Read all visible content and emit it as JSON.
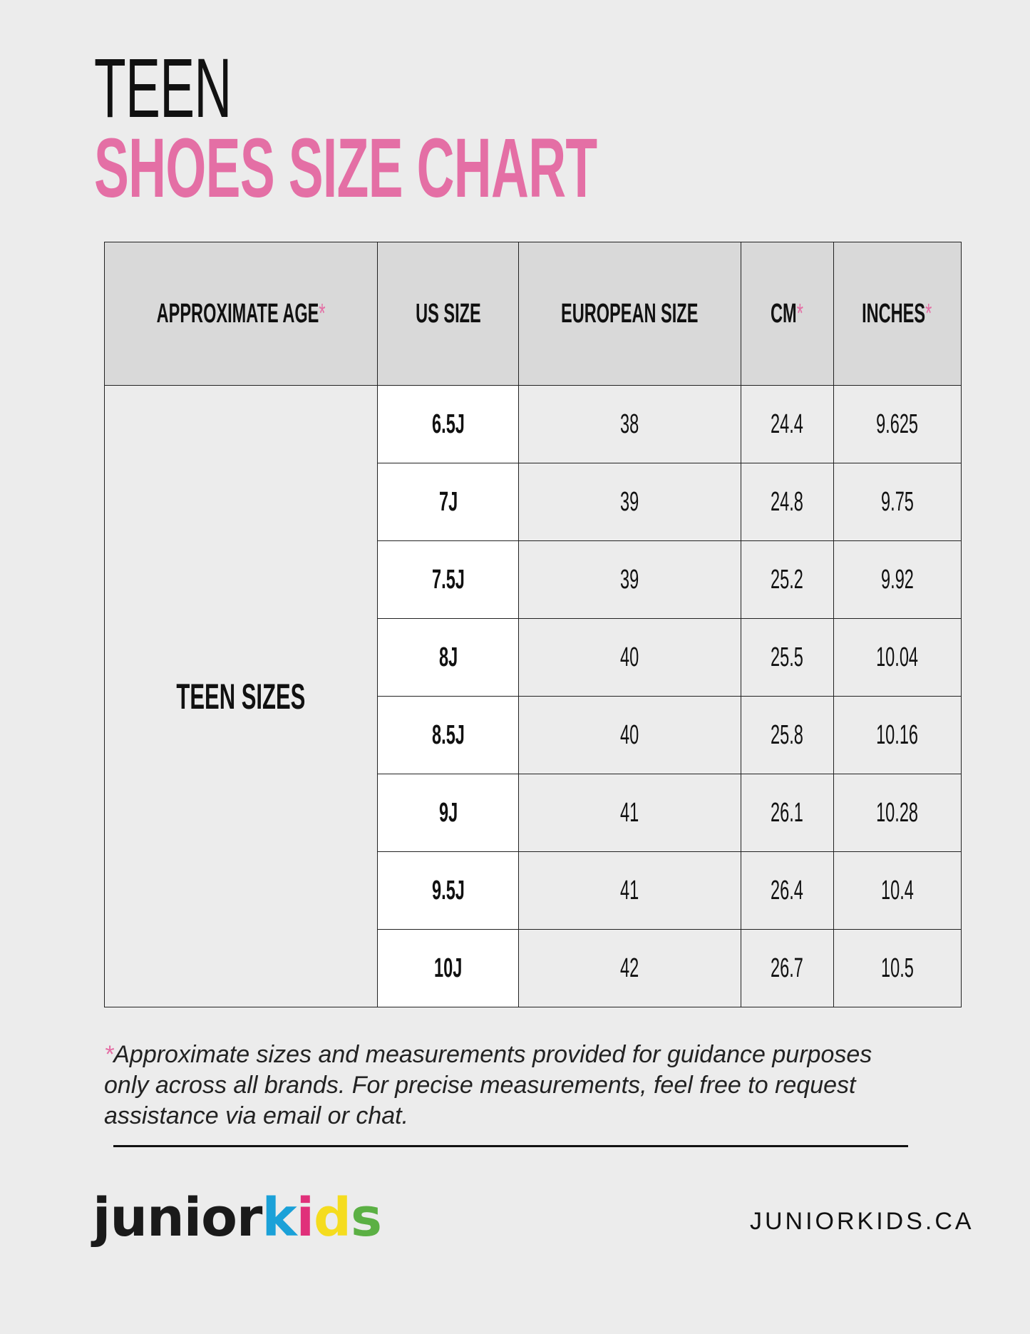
{
  "title": {
    "line1": "TEEN",
    "line2": "SHOES SIZE CHART"
  },
  "colors": {
    "accent": "#e46fa5",
    "header_bg": "#d9d9d9",
    "background": "#ececec"
  },
  "table": {
    "headers": [
      "APPROXIMATE AGE",
      "US SIZE",
      "EUROPEAN SIZE",
      "CM",
      "INCHES"
    ],
    "header_asterisk": [
      true,
      false,
      false,
      true,
      true
    ],
    "age_label": "TEEN SIZES",
    "rows": [
      {
        "us": "6.5J",
        "eu": "38",
        "cm": "24.4",
        "in": "9.625"
      },
      {
        "us": "7J",
        "eu": "39",
        "cm": "24.8",
        "in": "9.75"
      },
      {
        "us": "7.5J",
        "eu": "39",
        "cm": "25.2",
        "in": "9.92"
      },
      {
        "us": "8J",
        "eu": "40",
        "cm": "25.5",
        "in": "10.04"
      },
      {
        "us": "8.5J",
        "eu": "40",
        "cm": "25.8",
        "in": "10.16"
      },
      {
        "us": "9J",
        "eu": "41",
        "cm": "26.1",
        "in": "10.28"
      },
      {
        "us": "9.5J",
        "eu": "41",
        "cm": "26.4",
        "in": "10.4"
      },
      {
        "us": "10J",
        "eu": "42",
        "cm": "26.7",
        "in": "10.5"
      }
    ]
  },
  "asterisk": "*",
  "footnote": "Approximate sizes and measurements provided for guidance purposes only across all brands. For precise measurements, feel free to request assistance via email or chat.",
  "footer": {
    "logo_parts": [
      "junior",
      "k",
      "i",
      "d",
      "s"
    ],
    "logo_colors": [
      "#1a1a1a",
      "#1ba1d8",
      "#e0307a",
      "#f5dc1e",
      "#5bb044"
    ],
    "website": "JUNIORKIDS.CA"
  }
}
